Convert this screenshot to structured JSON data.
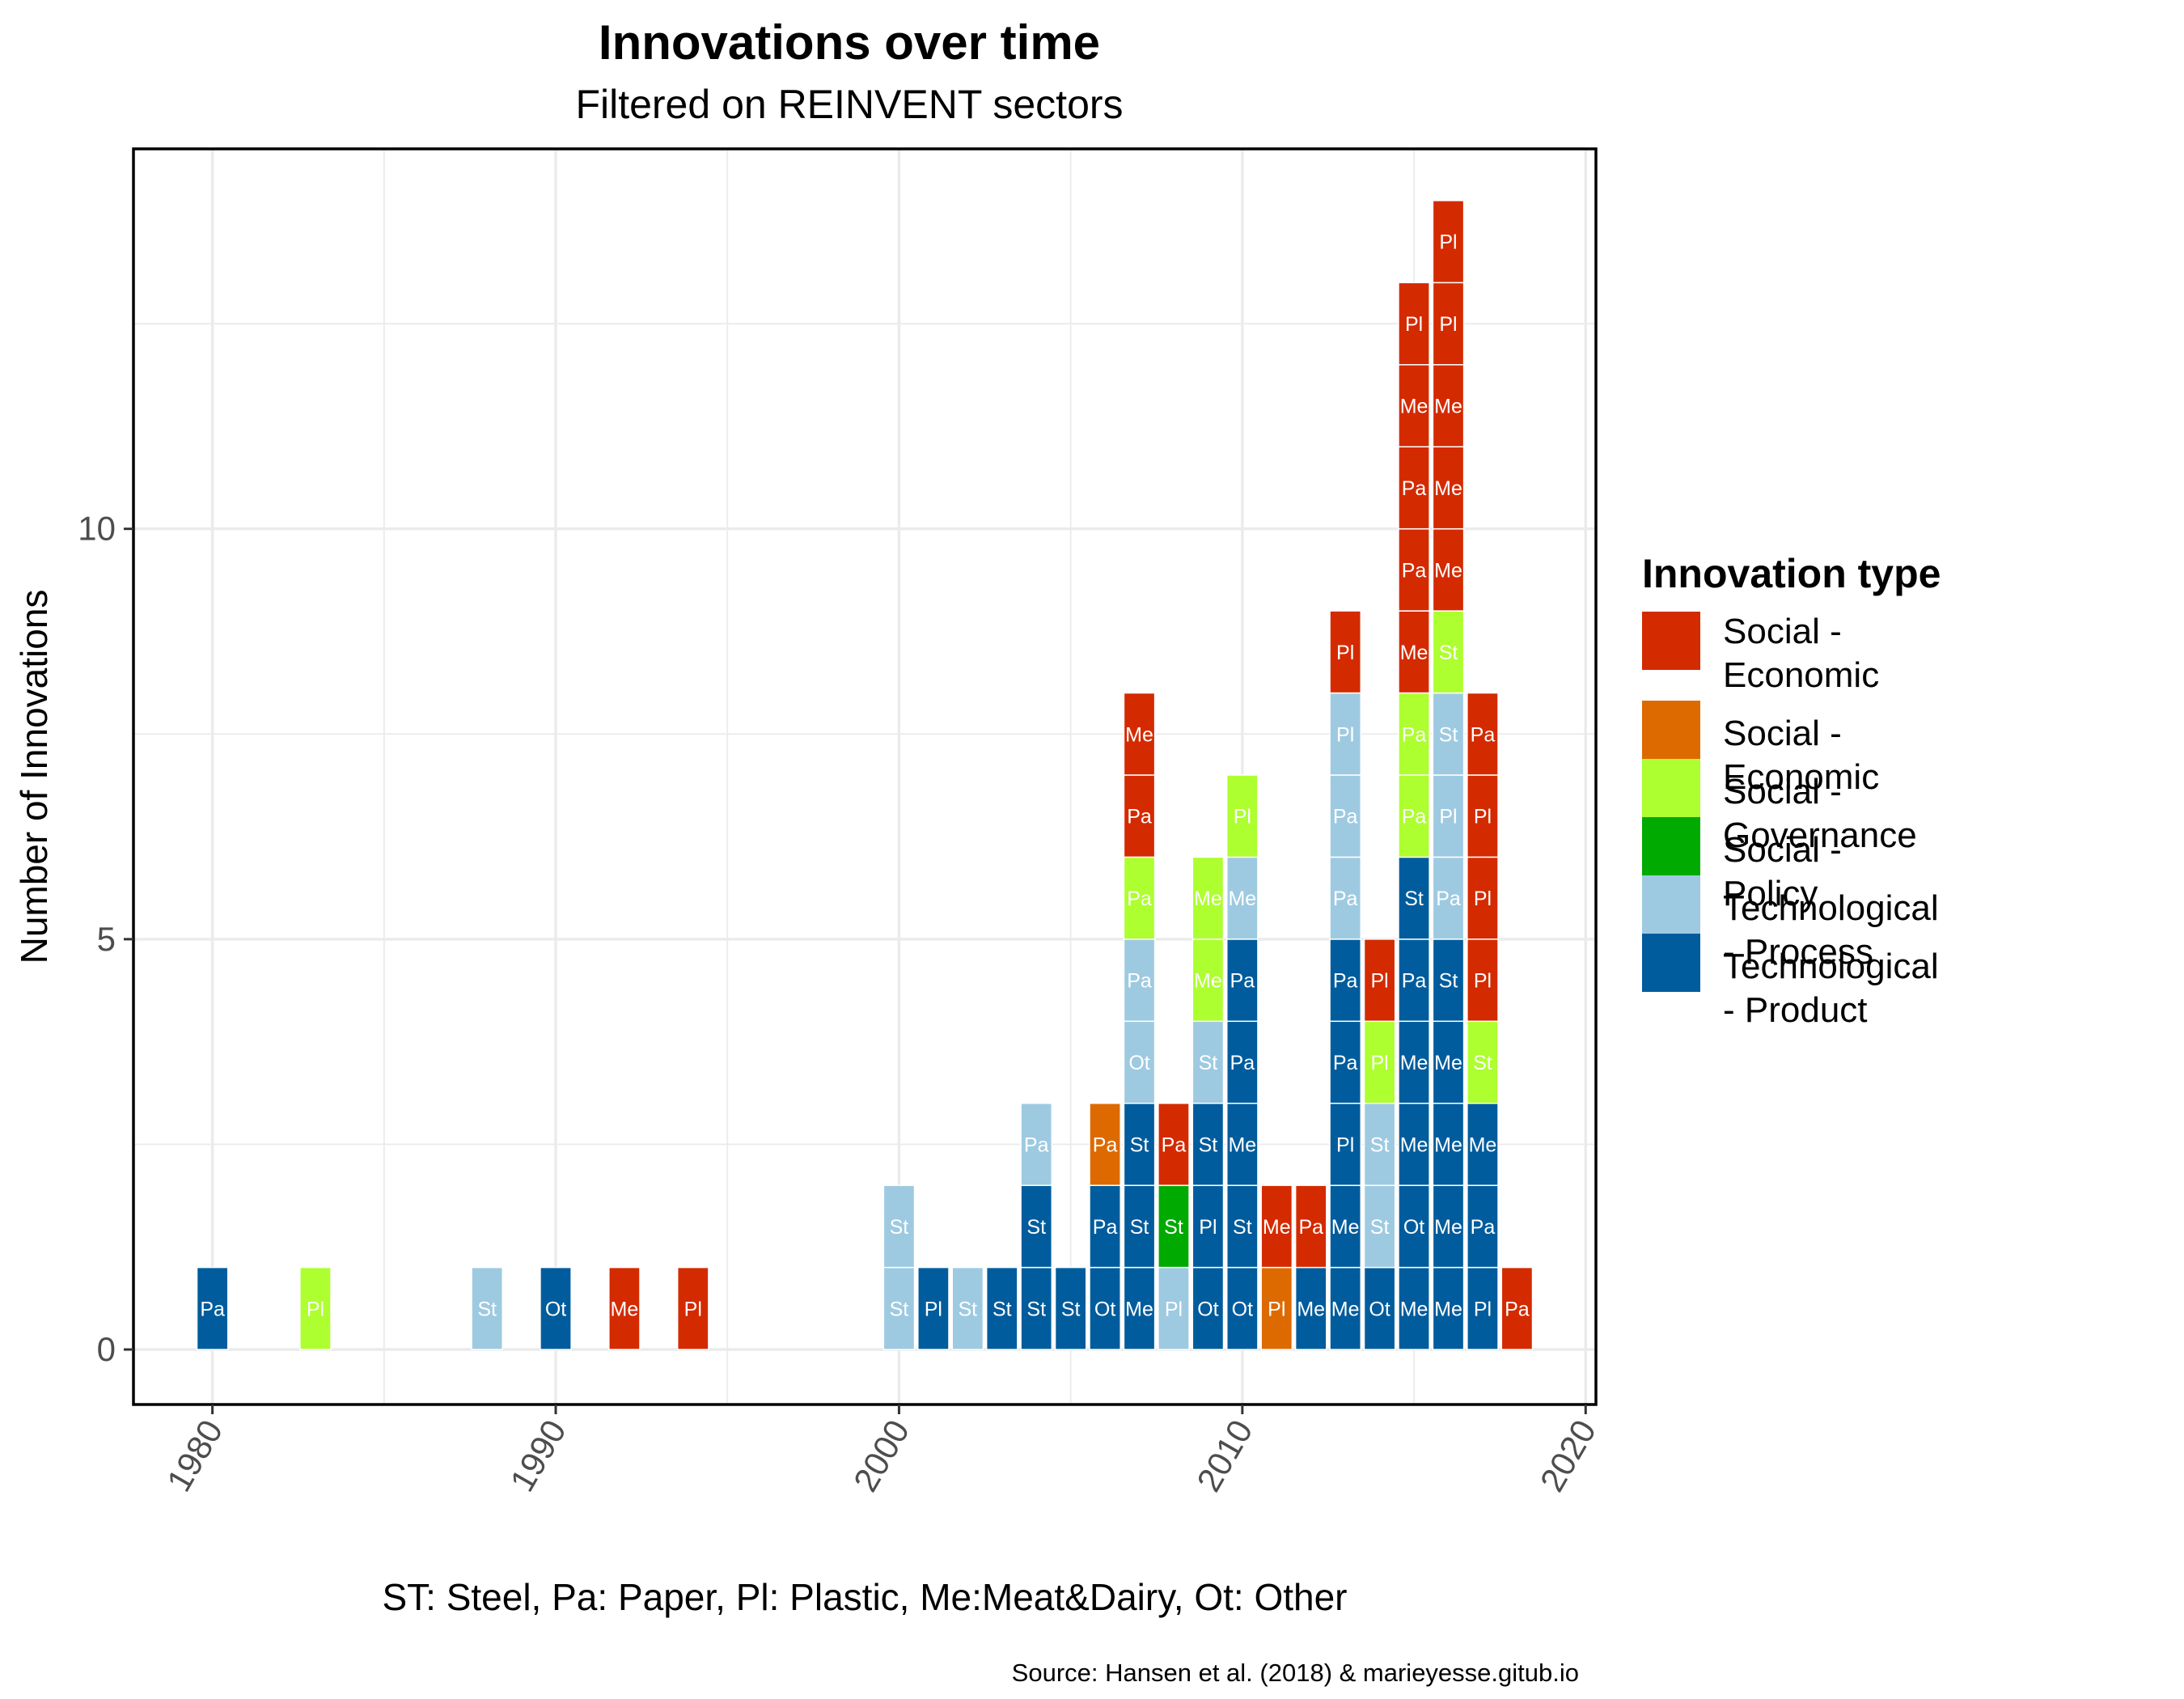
{
  "chart_data": {
    "type": "bar",
    "stacked": true,
    "title": "Innovations over time",
    "subtitle": "Filtered on REINVENT sectors",
    "xlabel": "ST: Steel, Pa: Paper, Pl: Plastic, Me:Meat&Dairy, Ot: Other",
    "ylabel": "Number of Innovations",
    "caption": "Source: Hansen et al. (2018) & marieyesse.gitub.io",
    "xlim": [
      1977.7,
      2020.3
    ],
    "ylim": [
      -0.67,
      14.63
    ],
    "x_ticks": [
      1980,
      1990,
      2000,
      2010,
      2020
    ],
    "y_ticks": [
      0,
      5,
      10
    ],
    "grid": true,
    "legend": {
      "title": "Innovation type",
      "position": "right",
      "items": [
        {
          "key": "se1",
          "label": "Social -\n Economic",
          "color": "#D42A00"
        },
        {
          "key": "se2",
          "label": "Social - Economic",
          "color": "#DD6A00"
        },
        {
          "key": "sg",
          "label": "Social - Governance",
          "color": "#ADFF2F"
        },
        {
          "key": "sp",
          "label": "Social - Policy",
          "color": "#00AA00"
        },
        {
          "key": "tproc",
          "label": "Technological - Process",
          "color": "#9ECAE1"
        },
        {
          "key": "tprod",
          "label": "Technological - Product",
          "color": "#005C9C"
        }
      ]
    },
    "bars": [
      {
        "year": 1980,
        "segments": [
          [
            "tprod",
            "Pa"
          ]
        ]
      },
      {
        "year": 1983,
        "segments": [
          [
            "sg",
            "Pl"
          ]
        ]
      },
      {
        "year": 1988,
        "segments": [
          [
            "tproc",
            "St"
          ]
        ]
      },
      {
        "year": 1990,
        "segments": [
          [
            "tprod",
            "Ot"
          ]
        ]
      },
      {
        "year": 1992,
        "segments": [
          [
            "se1",
            "Me"
          ]
        ]
      },
      {
        "year": 1994,
        "segments": [
          [
            "se1",
            "Pl"
          ]
        ]
      },
      {
        "year": 2000,
        "segments": [
          [
            "tproc",
            "St"
          ],
          [
            "tproc",
            "St"
          ]
        ]
      },
      {
        "year": 2001,
        "segments": [
          [
            "tprod",
            "Pl"
          ]
        ]
      },
      {
        "year": 2002,
        "segments": [
          [
            "tproc",
            "St"
          ]
        ]
      },
      {
        "year": 2003,
        "segments": [
          [
            "tprod",
            "St"
          ]
        ]
      },
      {
        "year": 2004,
        "segments": [
          [
            "tprod",
            "St"
          ],
          [
            "tprod",
            "St"
          ],
          [
            "tproc",
            "Pa"
          ]
        ]
      },
      {
        "year": 2005,
        "segments": [
          [
            "tprod",
            "St"
          ]
        ]
      },
      {
        "year": 2006,
        "segments": [
          [
            "tprod",
            "Ot"
          ],
          [
            "tprod",
            "Pa"
          ],
          [
            "se2",
            "Pa"
          ]
        ]
      },
      {
        "year": 2007,
        "segments": [
          [
            "tprod",
            "Me"
          ],
          [
            "tprod",
            "St"
          ],
          [
            "tprod",
            "St"
          ],
          [
            "tproc",
            "Ot"
          ],
          [
            "tproc",
            "Pa"
          ],
          [
            "sg",
            "Pa"
          ],
          [
            "se1",
            "Pa"
          ],
          [
            "se1",
            "Me"
          ]
        ]
      },
      {
        "year": 2008,
        "segments": [
          [
            "tproc",
            "Pl"
          ],
          [
            "sp",
            "St"
          ],
          [
            "se1",
            "Pa"
          ]
        ]
      },
      {
        "year": 2009,
        "segments": [
          [
            "tprod",
            "Ot"
          ],
          [
            "tprod",
            "Pl"
          ],
          [
            "tprod",
            "St"
          ],
          [
            "tproc",
            "St"
          ],
          [
            "sg",
            "Me"
          ],
          [
            "sg",
            "Me"
          ]
        ]
      },
      {
        "year": 2010,
        "segments": [
          [
            "tprod",
            "Ot"
          ],
          [
            "tprod",
            "St"
          ],
          [
            "tprod",
            "Me"
          ],
          [
            "tprod",
            "Pa"
          ],
          [
            "tprod",
            "Pa"
          ],
          [
            "tproc",
            "Me"
          ],
          [
            "sg",
            "Pl"
          ]
        ]
      },
      {
        "year": 2011,
        "segments": [
          [
            "se2",
            "Pl"
          ],
          [
            "se1",
            "Me"
          ]
        ]
      },
      {
        "year": 2012,
        "segments": [
          [
            "tprod",
            "Me"
          ],
          [
            "se1",
            "Pa"
          ]
        ]
      },
      {
        "year": 2013,
        "segments": [
          [
            "tprod",
            "Me"
          ],
          [
            "tprod",
            "Me"
          ],
          [
            "tprod",
            "Pl"
          ],
          [
            "tprod",
            "Pa"
          ],
          [
            "tprod",
            "Pa"
          ],
          [
            "tproc",
            "Pa"
          ],
          [
            "tproc",
            "Pa"
          ],
          [
            "tproc",
            "Pl"
          ],
          [
            "se1",
            "Pl"
          ]
        ]
      },
      {
        "year": 2014,
        "segments": [
          [
            "tprod",
            "Ot"
          ],
          [
            "tproc",
            "St"
          ],
          [
            "tproc",
            "St"
          ],
          [
            "sg",
            "Pl"
          ],
          [
            "se1",
            "Pl"
          ]
        ]
      },
      {
        "year": 2015,
        "segments": [
          [
            "tprod",
            "Me"
          ],
          [
            "tprod",
            "Ot"
          ],
          [
            "tprod",
            "Me"
          ],
          [
            "tprod",
            "Me"
          ],
          [
            "tprod",
            "Pa"
          ],
          [
            "tprod",
            "St"
          ],
          [
            "sg",
            "Pa"
          ],
          [
            "sg",
            "Pa"
          ],
          [
            "se1",
            "Me"
          ],
          [
            "se1",
            "Pa"
          ],
          [
            "se1",
            "Pa"
          ],
          [
            "se1",
            "Me"
          ],
          [
            "se1",
            "Pl"
          ]
        ]
      },
      {
        "year": 2016,
        "segments": [
          [
            "tprod",
            "Me"
          ],
          [
            "tprod",
            "Me"
          ],
          [
            "tprod",
            "Me"
          ],
          [
            "tprod",
            "Me"
          ],
          [
            "tprod",
            "St"
          ],
          [
            "tproc",
            "Pa"
          ],
          [
            "tproc",
            "Pl"
          ],
          [
            "tproc",
            "St"
          ],
          [
            "sg",
            "St"
          ],
          [
            "se1",
            "Me"
          ],
          [
            "se1",
            "Me"
          ],
          [
            "se1",
            "Me"
          ],
          [
            "se1",
            "Pl"
          ],
          [
            "se1",
            "Pl"
          ]
        ]
      },
      {
        "year": 2017,
        "segments": [
          [
            "tprod",
            "Pl"
          ],
          [
            "tprod",
            "Pa"
          ],
          [
            "tprod",
            "Me"
          ],
          [
            "sg",
            "St"
          ],
          [
            "se1",
            "Pl"
          ],
          [
            "se1",
            "Pl"
          ],
          [
            "se1",
            "Pl"
          ],
          [
            "se1",
            "Pa"
          ]
        ]
      },
      {
        "year": 2018,
        "segments": [
          [
            "se1",
            "Pa"
          ]
        ]
      }
    ]
  }
}
